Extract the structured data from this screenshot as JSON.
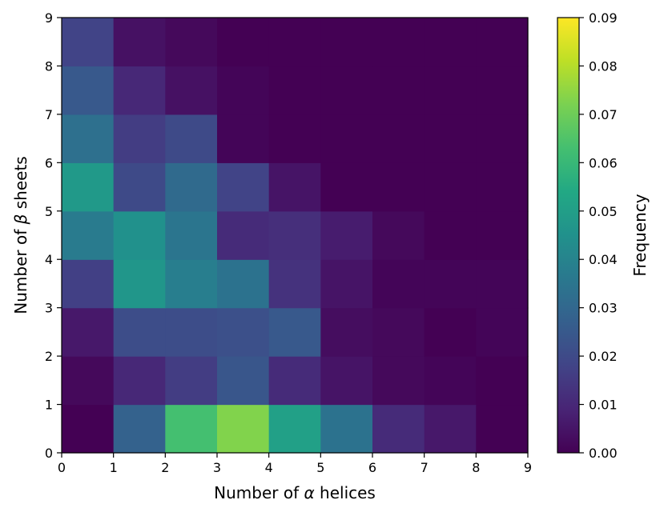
{
  "chart_data": {
    "type": "heatmap",
    "title": "",
    "xlabel_prefix": "Number of ",
    "xlabel_symbol": "α",
    "xlabel_suffix": " helices",
    "ylabel_prefix": "Number of ",
    "ylabel_symbol": "β",
    "ylabel_suffix": " sheets",
    "x_edges": [
      0,
      1,
      2,
      3,
      4,
      5,
      6,
      7,
      8,
      9
    ],
    "y_edges": [
      0,
      1,
      2,
      3,
      4,
      5,
      6,
      7,
      8,
      9
    ],
    "xlim": [
      0,
      9
    ],
    "ylim": [
      0,
      9
    ],
    "x_ticks": [
      "0",
      "1",
      "2",
      "3",
      "4",
      "5",
      "6",
      "7",
      "8",
      "9"
    ],
    "y_ticks": [
      "0",
      "1",
      "2",
      "3",
      "4",
      "5",
      "6",
      "7",
      "8",
      "9"
    ],
    "colormap": "viridis",
    "values": [
      [
        0.0,
        0.028,
        0.063,
        0.073,
        0.051,
        0.034,
        0.011,
        0.006,
        0.0
      ],
      [
        0.002,
        0.01,
        0.016,
        0.024,
        0.011,
        0.005,
        0.002,
        0.001,
        0.0
      ],
      [
        0.006,
        0.021,
        0.021,
        0.022,
        0.025,
        0.003,
        0.002,
        0.0,
        0.001
      ],
      [
        0.017,
        0.047,
        0.038,
        0.034,
        0.013,
        0.005,
        0.001,
        0.001,
        0.001
      ],
      [
        0.037,
        0.045,
        0.035,
        0.011,
        0.012,
        0.007,
        0.002,
        0.0,
        0.0
      ],
      [
        0.048,
        0.02,
        0.031,
        0.018,
        0.005,
        0.0,
        0.0,
        0.0,
        0.0
      ],
      [
        0.033,
        0.016,
        0.02,
        0.001,
        0.0,
        0.0,
        0.0,
        0.0,
        0.0
      ],
      [
        0.025,
        0.01,
        0.004,
        0.001,
        0.0,
        0.0,
        0.0,
        0.0,
        0.0
      ],
      [
        0.018,
        0.004,
        0.002,
        0.0,
        0.0,
        0.0,
        0.0,
        0.0,
        0.0
      ]
    ],
    "colorbar": {
      "label": "Frequency",
      "min": 0.0,
      "max": 0.09,
      "ticks": [
        "0.00",
        "0.01",
        "0.02",
        "0.03",
        "0.04",
        "0.05",
        "0.06",
        "0.07",
        "0.08",
        "0.09"
      ]
    },
    "grid": false
  }
}
